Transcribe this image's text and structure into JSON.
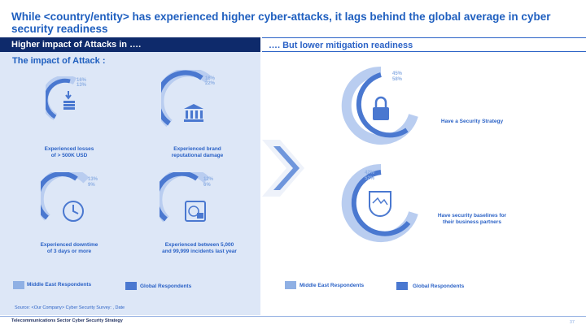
{
  "title": "While <country/entity> has experienced higher cyber-attacks, it lags behind the global average in cyber security readiness",
  "left_header": "Higher impact of Attacks in ….",
  "right_header": "…. But lower mitigation readiness",
  "impact_title": "The impact of Attack :",
  "impacts": [
    {
      "caption_1": "Experienced losses",
      "caption_2": "of > 500K USD",
      "pct_me": "16%",
      "pct_global": "13%",
      "icon": "money-icon"
    },
    {
      "caption_1": "Experienced brand",
      "caption_2": "reputational damage",
      "pct_me": "16%",
      "pct_global": "22%",
      "icon": "bank-icon"
    },
    {
      "caption_1": "Experienced downtime",
      "caption_2": "of 3 days or more",
      "pct_me": "13%",
      "pct_global": "9%",
      "icon": "clock-icon"
    },
    {
      "caption_1": "Experienced between 5,000",
      "caption_2": "and 99,999 incidents last year",
      "pct_me": "12%",
      "pct_global": "6%",
      "icon": "globe-lock-icon"
    }
  ],
  "readiness": [
    {
      "label": "Have a Security Strategy",
      "pct_me": "45%",
      "pct_global": "58%",
      "icon": "padlock-icon"
    },
    {
      "label_1": "Have security baselines for",
      "label_2": "their business partners",
      "pct_me": "42%",
      "pct_global": "52%",
      "icon": "shield-icon"
    }
  ],
  "legend": {
    "me": "Middle East Respondents",
    "global": "Global Respondents"
  },
  "colors": {
    "me": "#8fb0e4",
    "global": "#4a78d0",
    "navy": "#0e2a6b",
    "accent": "#1f5fbf"
  },
  "source": "Source: <Our Company> Cyber Security Survey: , Date",
  "footer": "Telecommunications Sector Cyber Security Strategy",
  "page_number": "37"
}
